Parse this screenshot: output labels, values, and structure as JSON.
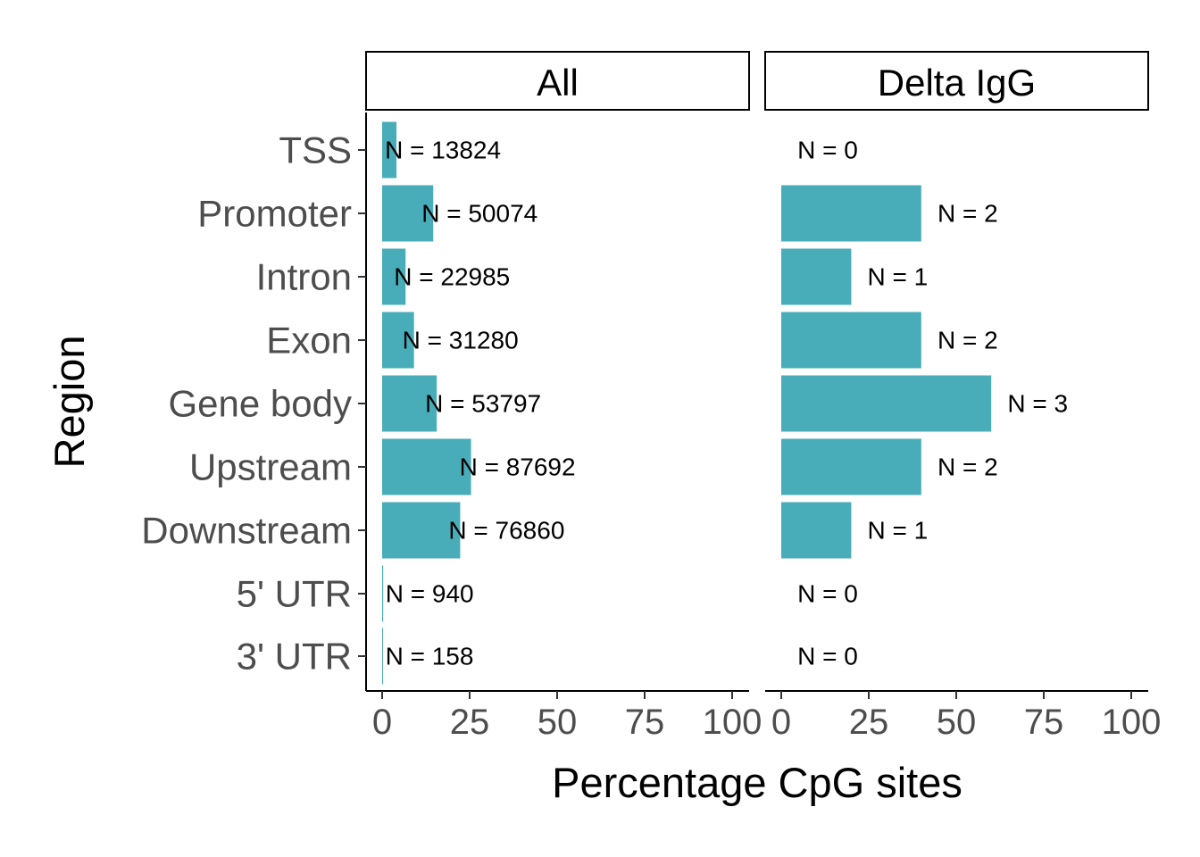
{
  "chart_data": {
    "type": "bar",
    "orientation": "horizontal",
    "xlabel": "Percentage CpG sites",
    "ylabel": "Region",
    "xlim": [
      0,
      100
    ],
    "xticks": [
      "0",
      "25",
      "50",
      "75",
      "100"
    ],
    "bar_color": "#48ADB9",
    "categories": [
      "TSS",
      "Promoter",
      "Intron",
      "Exon",
      "Gene body",
      "Upstream",
      "Downstream",
      "5' UTR",
      "3' UTR"
    ],
    "panels": [
      {
        "name": "All",
        "values": [
          4.1,
          14.6,
          6.7,
          9.1,
          15.6,
          25.4,
          22.3,
          0.3,
          0.05
        ],
        "labels": [
          "N = 13824",
          "N = 50074",
          "N = 22985",
          "N = 31280",
          "N = 53797",
          "N = 87692",
          "N = 76860",
          "N = 940",
          "N = 158"
        ]
      },
      {
        "name": "Delta IgG",
        "values": [
          0,
          40,
          20,
          40,
          60,
          40,
          20,
          0,
          0
        ],
        "labels": [
          "N = 0",
          "N = 2",
          "N = 1",
          "N = 2",
          "N = 3",
          "N = 2",
          "N = 1",
          "N = 0",
          "N = 0"
        ]
      }
    ]
  }
}
